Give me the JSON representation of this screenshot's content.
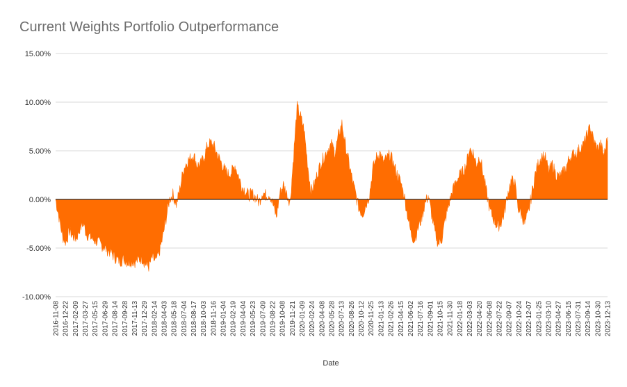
{
  "chart_data": {
    "type": "area",
    "title": "Current Weights Portfolio Outperformance",
    "xlabel": "Date",
    "ylabel": "",
    "ylim": [
      -10,
      15
    ],
    "y_ticks": [
      -10,
      -5,
      0,
      5,
      10,
      15
    ],
    "y_tick_labels": [
      "-10.00%",
      "-5.00%",
      "0.00%",
      "5.00%",
      "10.00%",
      "15.00%"
    ],
    "grid": true,
    "legend": "none",
    "colors": {
      "fill": "#ff6d01",
      "zero_line": "#000000",
      "grid": "#d9d9d9"
    },
    "x_tick_labels": [
      "2016-11-08",
      "2016-12-22",
      "2017-02-09",
      "2017-03-27",
      "2017-05-15",
      "2017-06-29",
      "2017-08-14",
      "2017-09-28",
      "2017-11-13",
      "2017-12-29",
      "2018-02-14",
      "2018-04-03",
      "2018-05-18",
      "2018-07-04",
      "2018-08-17",
      "2018-10-03",
      "2018-11-16",
      "2019-01-04",
      "2019-02-19",
      "2019-04-04",
      "2019-05-23",
      "2019-07-09",
      "2019-08-22",
      "2019-10-08",
      "2019-11-21",
      "2020-01-09",
      "2020-02-24",
      "2020-04-08",
      "2020-05-28",
      "2020-07-13",
      "2020-08-26",
      "2020-10-12",
      "2020-11-25",
      "2021-01-13",
      "2021-02-26",
      "2021-04-15",
      "2021-06-02",
      "2021-07-16",
      "2021-09-01",
      "2021-10-15",
      "2021-11-30",
      "2022-01-18",
      "2022-03-03",
      "2022-04-20",
      "2022-06-08",
      "2022-07-22",
      "2022-09-07",
      "2022-10-24",
      "2022-12-07",
      "2023-01-25",
      "2023-03-10",
      "2023-04-27",
      "2023-06-15",
      "2023-07-31",
      "2023-09-14",
      "2023-10-30",
      "2023-12-13"
    ],
    "series": [
      {
        "values": [
          0.0,
          -1.8,
          -3.8,
          -4.4,
          -3.2,
          -3.8,
          -4.0,
          -3.0,
          -2.4,
          -3.6,
          -3.8,
          -4.2,
          -4.3,
          -4.6,
          -4.9,
          -5.2,
          -5.4,
          -5.9,
          -6.2,
          -6.3,
          -6.1,
          -6.5,
          -6.3,
          -6.4,
          -6.2,
          -6.0,
          -6.6,
          -6.9,
          -6.0,
          -6.4,
          -5.5,
          -4.0,
          -2.0,
          0.0,
          0.5,
          -0.5,
          1.0,
          3.0,
          3.8,
          4.2,
          4.6,
          3.5,
          3.6,
          4.3,
          5.5,
          5.8,
          5.4,
          4.5,
          3.8,
          3.0,
          2.6,
          2.8,
          3.5,
          2.4,
          1.3,
          0.9,
          0.4,
          0.6,
          0.2,
          -0.3,
          0.8,
          0.4,
          0.6,
          -0.5,
          -1.8,
          0.6,
          1.5,
          0.6,
          -0.3,
          4.5,
          9.5,
          8.5,
          7.2,
          3.8,
          0.8,
          1.5,
          2.8,
          3.8,
          4.5,
          5.2,
          5.6,
          4.8,
          6.5,
          7.8,
          5.5,
          3.8,
          2.0,
          0.5,
          -1.0,
          -1.5,
          -0.5,
          0.5,
          3.2,
          4.3,
          4.8,
          3.8,
          4.2,
          4.6,
          3.6,
          2.6,
          1.8,
          0.5,
          -1.5,
          -3.5,
          -4.2,
          -3.0,
          -2.0,
          -0.5,
          0.4,
          -1.5,
          -3.5,
          -4.6,
          -4.0,
          -2.0,
          -0.5,
          0.8,
          1.8,
          2.4,
          2.8,
          3.5,
          5.2,
          4.8,
          3.6,
          4.5,
          2.5,
          0.5,
          -1.2,
          -2.0,
          -2.8,
          -2.5,
          -1.5,
          0.5,
          1.8,
          2.0,
          -0.8,
          -1.5,
          -2.5,
          -1.5,
          0.5,
          2.5,
          3.8,
          4.5,
          4.2,
          2.8,
          3.6,
          2.6,
          2.3,
          2.7,
          3.3,
          4.3,
          4.6,
          4.8,
          5.2,
          5.6,
          6.5,
          7.5,
          6.0,
          5.2,
          5.6,
          4.5,
          6.4
        ]
      }
    ]
  }
}
